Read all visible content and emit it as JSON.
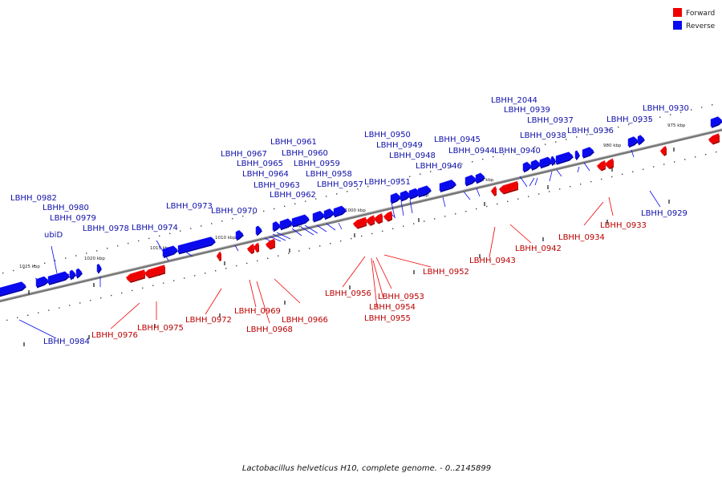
{
  "caption": "Lactobacillus helveticus H10, complete genome. - 0..2145899",
  "legend": {
    "forward": {
      "label": "Forward",
      "color": "#ee0000"
    },
    "reverse": {
      "label": "Reverse",
      "color": "#0a0aee"
    }
  },
  "kbp_labels": [
    "975 kbp",
    "980 kbp",
    "985 kbp",
    "990 kbp",
    "995 kbp",
    "1000 kbp",
    "1005 kbp",
    "1010 kbp",
    "1015 kbp",
    "1020 kbp",
    "1025 kbp"
  ],
  "reverse_genes": [
    "LBHH_2044",
    "LBHH_0939",
    "LBHH_0937",
    "LBHH_0938",
    "LBHH_0936",
    "LBHH_0935",
    "LBHH_0930",
    "LBHH_0940",
    "LBHH_0945",
    "LBHH_0944",
    "LBHH_0946",
    "LBHH_0950",
    "LBHH_0949",
    "LBHH_0948",
    "LBHH_0951",
    "LBHH_0961",
    "LBHH_0960",
    "LBHH_0959",
    "LBHH_0958",
    "LBHH_0957",
    "LBHH_0967",
    "LBHH_0965",
    "LBHH_0964",
    "LBHH_0963",
    "LBHH_0962",
    "LBHH_0970",
    "LBHH_0973",
    "LBHH_0974",
    "LBHH_0982",
    "LBHH_0980",
    "LBHH_0979",
    "ubiD",
    "LBHH_0978",
    "LBHH_0929",
    "LBHH_0984"
  ],
  "forward_genes": [
    "LBHH_0934",
    "LBHH_0933",
    "LBHH_0942",
    "LBHH_0943",
    "LBHH_0952",
    "LBHH_0953",
    "LBHH_0954",
    "LBHH_0955",
    "LBHH_0956",
    "LBHH_0966",
    "LBHH_0968",
    "LBHH_0969",
    "LBHH_0972",
    "LBHH_0975",
    "LBHH_0976"
  ]
}
